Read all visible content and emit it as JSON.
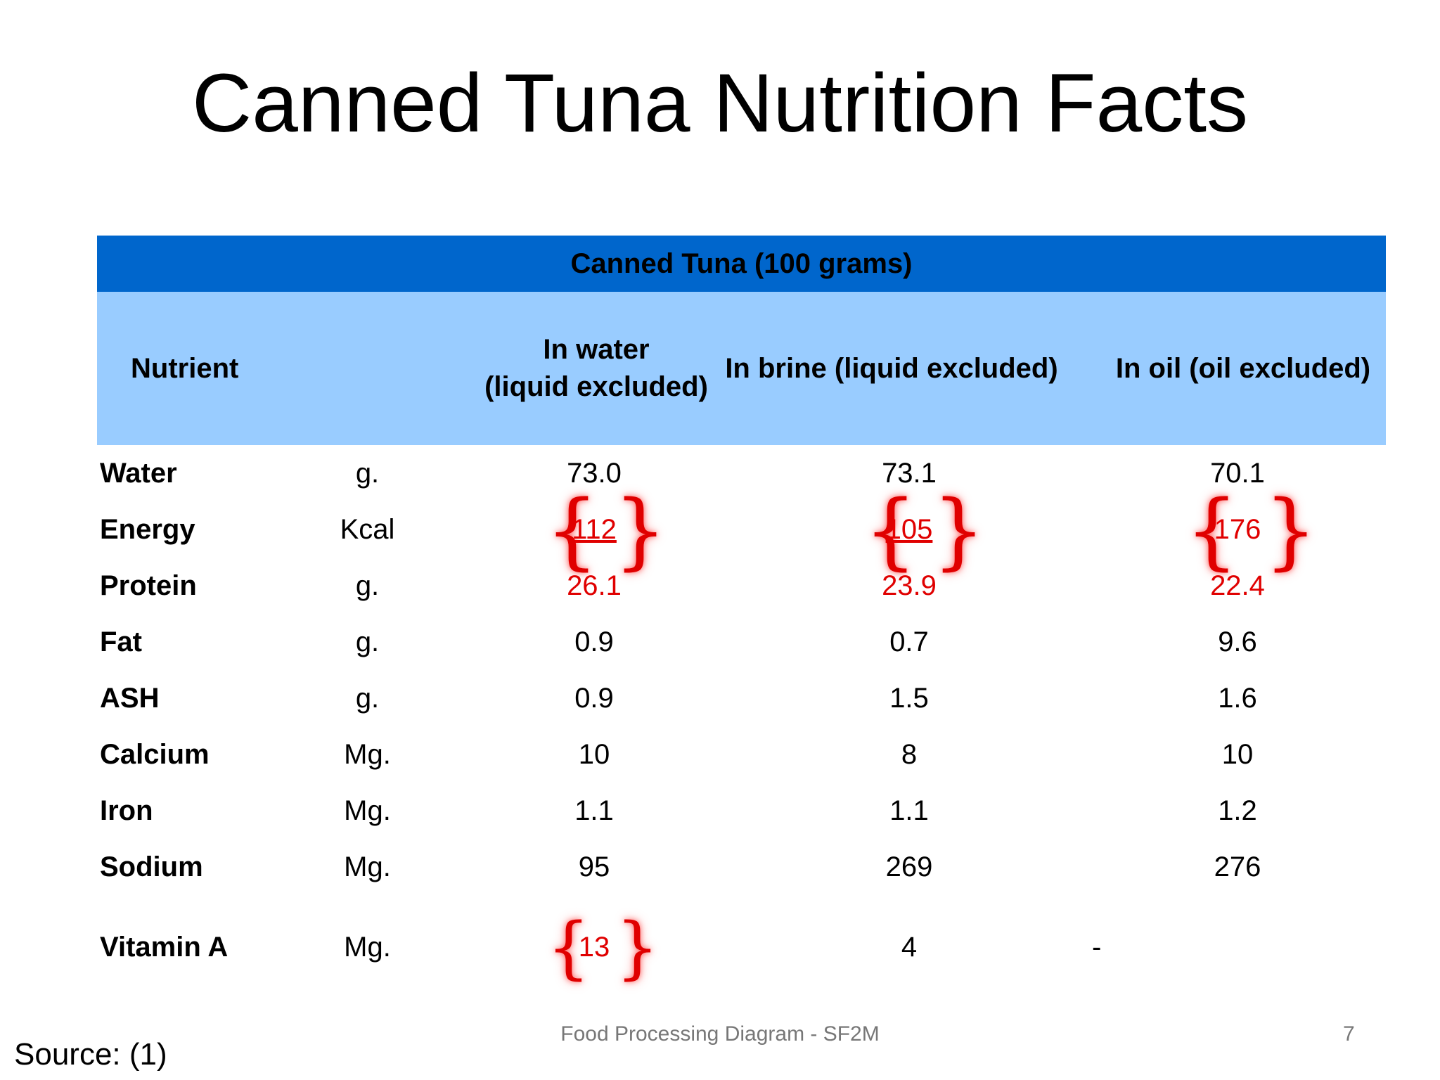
{
  "title": "Canned Tuna Nutrition Facts",
  "table": {
    "group_header": "Canned Tuna (100 grams)",
    "columns": {
      "nutrient": "Nutrient",
      "water_line1": "In water",
      "water_line2": "(liquid excluded)",
      "brine": "In brine (liquid excluded)",
      "oil": "In oil (oil excluded)"
    },
    "rows": [
      {
        "name": "Water",
        "unit": "g.",
        "water": "73.0",
        "brine": "73.1",
        "oil": "70.1"
      },
      {
        "name": "Energy",
        "unit": "Kcal",
        "water": "112",
        "brine": "105",
        "oil": "176"
      },
      {
        "name": "Protein",
        "unit": "g.",
        "water": "26.1",
        "brine": "23.9",
        "oil": "22.4"
      },
      {
        "name": "Fat",
        "unit": "g.",
        "water": "0.9",
        "brine": "0.7",
        "oil": "9.6"
      },
      {
        "name": "ASH",
        "unit": "g.",
        "water": "0.9",
        "brine": "1.5",
        "oil": "1.6"
      },
      {
        "name": "Calcium",
        "unit": "Mg.",
        "water": "10",
        "brine": "8",
        "oil": "10"
      },
      {
        "name": "Iron",
        "unit": "Mg.",
        "water": "1.1",
        "brine": "1.1",
        "oil": "1.2"
      },
      {
        "name": "Sodium",
        "unit": "Mg.",
        "water": "95",
        "brine": "269",
        "oil": "276"
      },
      {
        "name": "Vitamin A",
        "unit": "Mg.",
        "water": "13",
        "brine": "4",
        "oil": "-"
      }
    ]
  },
  "colors": {
    "header_dark": "#0066CC",
    "header_light": "#99CCFF",
    "highlight_red": "#E00000"
  },
  "footer": {
    "center": "Food Processing Diagram - SF2M",
    "page_number": "7",
    "source": "Source: (1)"
  }
}
